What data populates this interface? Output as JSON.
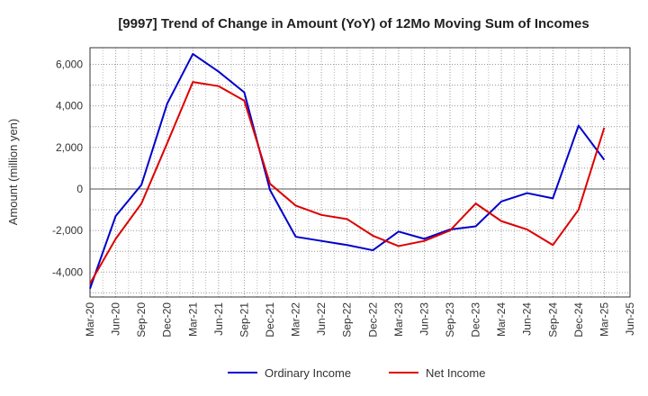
{
  "chart_data": {
    "type": "line",
    "title": "[9997]  Trend of Change in Amount (YoY) of 12Mo Moving Sum of Incomes",
    "xlabel": "",
    "ylabel": "Amount (million yen)",
    "ylim": [
      -5200,
      6800
    ],
    "yticks": [
      -4000,
      -2000,
      0,
      2000,
      4000,
      6000
    ],
    "ytick_labels": [
      "-4,000",
      "-2,000",
      "0",
      "2,000",
      "4,000",
      "6,000"
    ],
    "categories": [
      "Mar-20",
      "Jun-20",
      "Sep-20",
      "Dec-20",
      "Mar-21",
      "Jun-21",
      "Sep-21",
      "Dec-21",
      "Mar-22",
      "Jun-22",
      "Sep-22",
      "Dec-22",
      "Mar-23",
      "Jun-23",
      "Sep-23",
      "Dec-23",
      "Mar-24",
      "Jun-24",
      "Sep-24",
      "Dec-24",
      "Mar-25",
      "Jun-25"
    ],
    "grid": true,
    "legend_position": "bottom-center",
    "series": [
      {
        "name": "Ordinary Income",
        "color": "#0000cc",
        "values": [
          -4800,
          -1300,
          200,
          4100,
          6500,
          5650,
          4650,
          -50,
          -2300,
          -2500,
          -2700,
          -2950,
          -2050,
          -2400,
          -1950,
          -1800,
          -600,
          -200,
          -450,
          3050,
          1400,
          null
        ]
      },
      {
        "name": "Net Income",
        "color": "#dd0000",
        "values": [
          -4550,
          -2400,
          -700,
          2200,
          5150,
          4950,
          4250,
          250,
          -800,
          -1250,
          -1450,
          -2250,
          -2750,
          -2500,
          -2000,
          -700,
          -1550,
          -1950,
          -2700,
          -1000,
          2950,
          null
        ]
      }
    ]
  }
}
